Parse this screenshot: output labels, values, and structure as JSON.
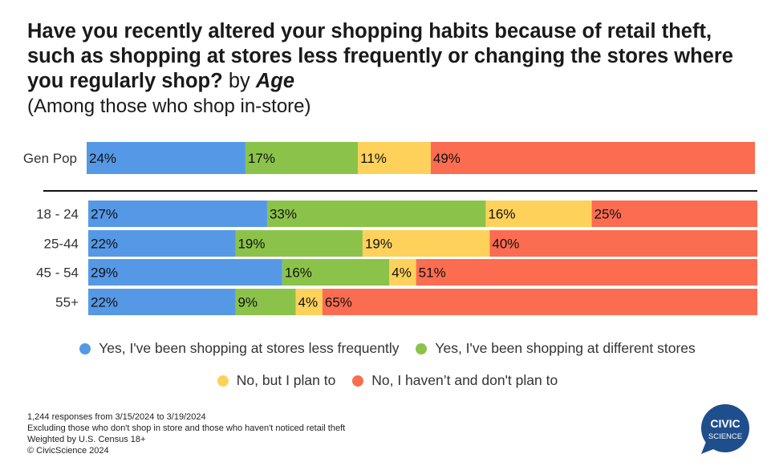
{
  "title": {
    "main": "Have you recently altered your shopping habits because of retail theft, such as shopping at stores less frequently or changing the stores where you regularly shop?",
    "by": "by",
    "dimension": "Age",
    "subtitle": "(Among those who shop in-store)"
  },
  "chart_data": {
    "type": "bar",
    "orientation": "horizontal",
    "stacked": true,
    "normalized": true,
    "categories": [
      "Gen Pop",
      "18 - 24",
      "25-44",
      "45 - 54",
      "55+"
    ],
    "series": [
      {
        "name": "Yes, I've been shopping at stores less frequently",
        "color": "#5599e6",
        "values": [
          24,
          27,
          22,
          29,
          22
        ]
      },
      {
        "name": "Yes, I've been shopping at different stores",
        "color": "#8bc34a",
        "values": [
          17,
          33,
          19,
          16,
          9
        ]
      },
      {
        "name": "No, but I plan to",
        "color": "#fdd15a",
        "values": [
          11,
          16,
          19,
          4,
          4
        ]
      },
      {
        "name": "No, I haven’t and don't plan to",
        "color": "#fb6c50",
        "values": [
          49,
          25,
          40,
          51,
          65
        ]
      }
    ],
    "value_suffix": "%",
    "legend_position": "bottom"
  },
  "footnotes": [
    "1,244 responses from 3/15/2024 to 3/19/2024",
    "Excluding those who don't shop in store and those who haven't noticed retail theft",
    "Weighted by U.S. Census 18+",
    "© CivicScience 2024"
  ],
  "logo": {
    "line1": "CIVIC",
    "line2": "SCIENCE",
    "color": "#1f4e8c"
  }
}
